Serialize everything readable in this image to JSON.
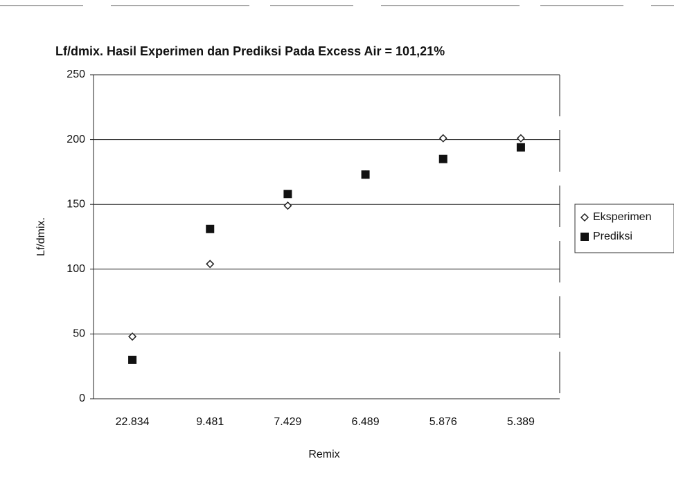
{
  "chart_data": {
    "type": "scatter",
    "title": "Lf/dmix. Hasil Experimen dan Prediksi Pada Excess Air = 101,21%",
    "x_label": "Remix",
    "y_label": "Lf/dmix.",
    "categories": [
      "22.834",
      "9.481",
      "7.429",
      "6.489",
      "5.876",
      "5.389"
    ],
    "series": [
      {
        "name": "Eksperimen",
        "color": "#222222",
        "marker": "diamond",
        "values": [
          48,
          104,
          149,
          173,
          201,
          201
        ]
      },
      {
        "name": "Prediksi",
        "color": "#111111",
        "marker": "square",
        "values": [
          30,
          131,
          158,
          173,
          185,
          194
        ]
      }
    ],
    "ylim": [
      0,
      250
    ],
    "yticks": [
      0,
      50,
      100,
      150,
      200,
      250
    ],
    "grid": true,
    "legend": "right"
  }
}
